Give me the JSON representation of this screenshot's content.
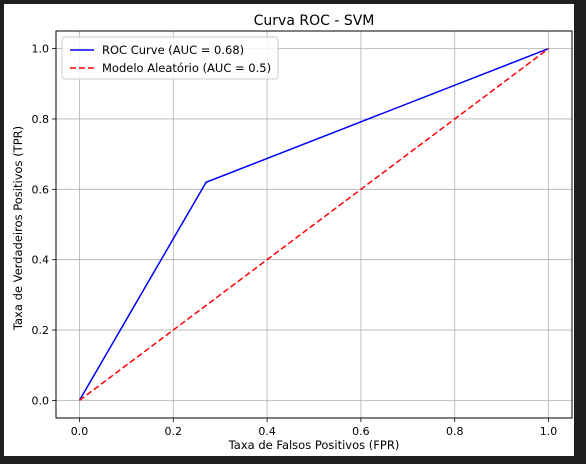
{
  "chart_data": {
    "type": "line",
    "title": "Curva ROC - SVM",
    "xlabel": "Taxa de Falsos Positivos (FPR)",
    "ylabel": "Taxa de Verdadeiros Positivos (TPR)",
    "xlim": [
      -0.05,
      1.05
    ],
    "ylim": [
      -0.05,
      1.05
    ],
    "x_ticks": [
      0.0,
      0.2,
      0.4,
      0.6,
      0.8,
      1.0
    ],
    "y_ticks": [
      0.0,
      0.2,
      0.4,
      0.6,
      0.8,
      1.0
    ],
    "x_tick_labels": [
      "0.0",
      "0.2",
      "0.4",
      "0.6",
      "0.8",
      "1.0"
    ],
    "y_tick_labels": [
      "0.0",
      "0.2",
      "0.4",
      "0.6",
      "0.8",
      "1.0"
    ],
    "grid": true,
    "legend_position": "top-left",
    "series": [
      {
        "name": "ROC Curve (AUC = 0.68)",
        "color": "#0000ff",
        "style": "solid",
        "x": [
          0.0,
          0.27,
          1.0
        ],
        "y": [
          0.0,
          0.62,
          1.0
        ]
      },
      {
        "name": "Modelo Aleatório (AUC = 0.5)",
        "color": "#ff0000",
        "style": "dashed",
        "x": [
          0.0,
          1.0
        ],
        "y": [
          0.0,
          1.0
        ]
      }
    ]
  }
}
